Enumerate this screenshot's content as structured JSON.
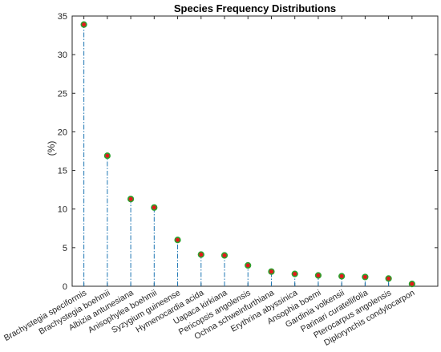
{
  "chart_data": {
    "type": "stem",
    "title": "Species Frequency Distributions",
    "xlabel": "",
    "ylabel": "(%)",
    "ylim": [
      0,
      35
    ],
    "yticks": [
      0,
      5,
      10,
      15,
      20,
      25,
      30,
      35
    ],
    "grid": false,
    "categories": [
      "Brachystegia speciformis",
      "Brachystegia boehmii",
      "Albizia antunesiana",
      "Anisophylea boehmii",
      "Syzygium guineense",
      "Hymenocardia acida",
      "Uapaca kirkiana",
      "Pericopsis angolensis",
      "Ochna schweinfurthiana",
      "Erythrina abyssinica",
      "Ansophia boemi",
      "Gardinia volkensii",
      "Parinari curatellifolia",
      "Pterocarpus angolensis",
      "Diplorynchis condylocarpon"
    ],
    "values": [
      33.9,
      16.9,
      11.3,
      10.2,
      6.0,
      4.1,
      4.0,
      2.7,
      1.9,
      1.6,
      1.4,
      1.3,
      1.2,
      1.0,
      0.3
    ],
    "colors": {
      "stem": "#1f77b4",
      "marker_fill": "#e31a1c",
      "marker_edge": "#2ca02c",
      "axis": "#262626"
    }
  }
}
